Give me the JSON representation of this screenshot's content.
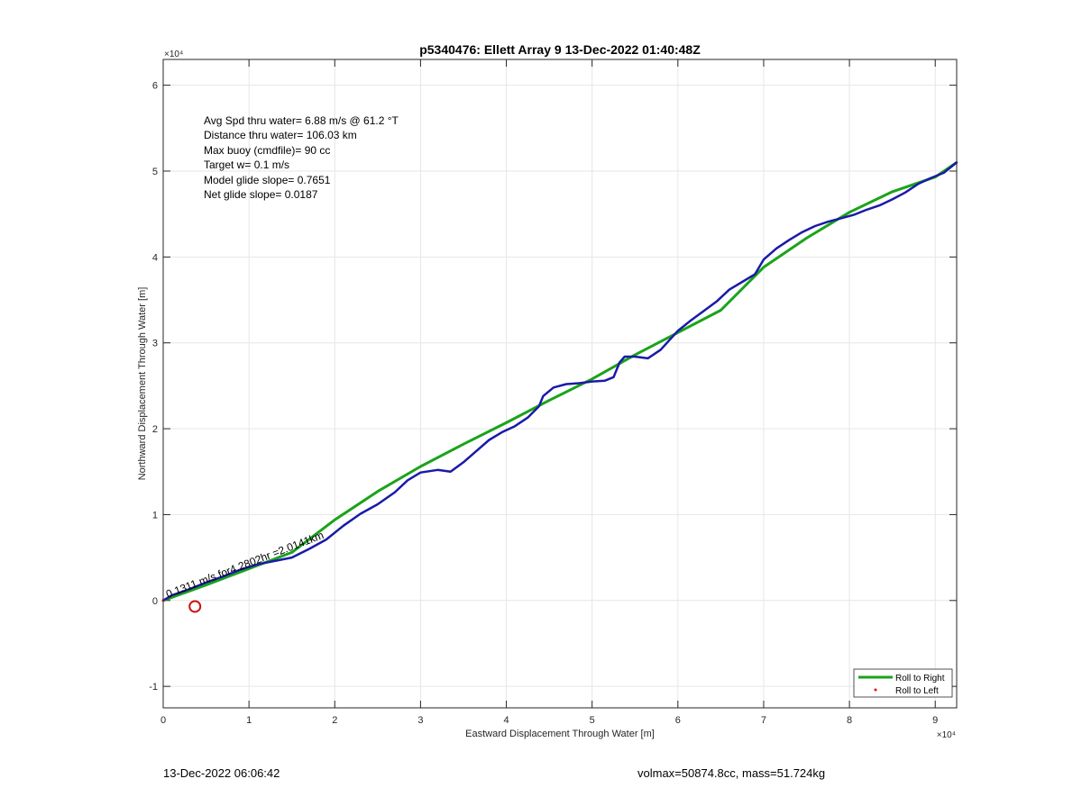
{
  "chart_data": {
    "type": "line",
    "title": "p5340476: Ellett Array 9 13-Dec-2022 01:40:48Z",
    "xlabel": "Eastward Displacement Through Water [m]",
    "ylabel": "Northward Displacement Through Water [m]",
    "xlim": [
      0,
      92500
    ],
    "ylim": [
      -12500,
      63000
    ],
    "x_exponent_label": "×10⁴",
    "y_exponent_label": "×10⁴",
    "x_ticks": [
      0,
      10000,
      20000,
      30000,
      40000,
      50000,
      60000,
      70000,
      80000,
      90000
    ],
    "x_tick_labels": [
      "0",
      "1",
      "2",
      "3",
      "4",
      "5",
      "6",
      "7",
      "8",
      "9"
    ],
    "y_ticks": [
      -10000,
      0,
      10000,
      20000,
      30000,
      40000,
      50000,
      60000
    ],
    "y_tick_labels": [
      "-1",
      "0",
      "1",
      "2",
      "3",
      "4",
      "5",
      "6"
    ],
    "grid": true,
    "legend_position": "bottom-right",
    "annotations": [
      "Avg Spd thru water=  6.88 m/s @  61.2 °T",
      "Distance thru water= 106.03 km",
      "Max buoy (cmdfile)= 90 cc",
      "Target w= 0.1 m/s",
      "Model glide slope= 0.7651",
      "Net glide slope= 0.0187"
    ],
    "current_label": "0.1311 m/s for4.2802hr =2.0141km",
    "start_marker_xy": [
      3700,
      -700
    ],
    "series": [
      {
        "name": "Roll to Right",
        "color": "#1aa31a",
        "x": [
          0,
          5000,
          15000,
          20000,
          25000,
          30000,
          35000,
          40000,
          45000,
          50000,
          55000,
          60000,
          65000,
          70000,
          75000,
          80000,
          85000,
          90000,
          92500
        ],
        "y": [
          0,
          1800,
          5600,
          9400,
          12700,
          15600,
          18200,
          20700,
          23300,
          25800,
          28600,
          31200,
          33800,
          38800,
          42200,
          45200,
          47600,
          49300,
          51000
        ]
      },
      {
        "name": "Roll to Left",
        "color": "#e01010",
        "x": [
          0
        ],
        "y": [
          0
        ]
      },
      {
        "color": "#1a1aa8",
        "x": [
          0,
          1000,
          3000,
          5000,
          7000,
          9000,
          11000,
          13000,
          15000,
          17000,
          19000,
          21000,
          23000,
          25000,
          27000,
          28500,
          30000,
          32000,
          33500,
          35000,
          36500,
          38000,
          39500,
          41000,
          42500,
          43800,
          44300,
          45500,
          47000,
          48500,
          50000,
          51500,
          52500,
          53200,
          53800,
          55000,
          56500,
          58000,
          59000,
          60000,
          61500,
          63000,
          64500,
          66000,
          67500,
          69000,
          70000,
          71500,
          73000,
          74500,
          76000,
          77500,
          79000,
          80500,
          82000,
          83500,
          85000,
          86500,
          88000,
          89500,
          91000,
          92500
        ],
        "y": [
          0,
          600,
          1300,
          2100,
          2800,
          3600,
          4200,
          4600,
          5000,
          6000,
          7100,
          8700,
          10100,
          11200,
          12600,
          14000,
          14900,
          15200,
          15000,
          16100,
          17400,
          18700,
          19600,
          20300,
          21300,
          22600,
          23800,
          24800,
          25200,
          25300,
          25500,
          25600,
          26000,
          27700,
          28400,
          28400,
          28200,
          29200,
          30300,
          31400,
          32600,
          33700,
          34800,
          36200,
          37100,
          38000,
          39700,
          41000,
          42000,
          42900,
          43600,
          44100,
          44500,
          44900,
          45500,
          46000,
          46700,
          47500,
          48500,
          49200,
          49800,
          51000
        ]
      }
    ]
  },
  "footer": {
    "timestamp": "13-Dec-2022 06:06:42",
    "summary": "volmax=50874.8cc, mass=51.724kg"
  }
}
